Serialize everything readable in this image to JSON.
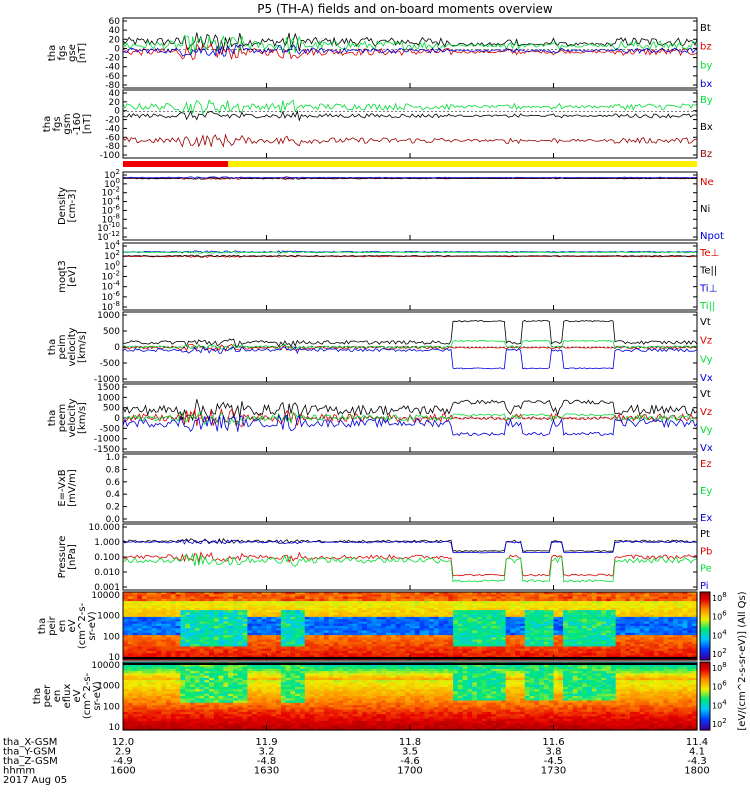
{
  "title": "P5 (TH-A) fields and on-board moments overview",
  "colors": {
    "black": "#000000",
    "red": "#dd0000",
    "green": "#00dd33",
    "blue": "#0000dd",
    "darkred": "#990000",
    "yellow": "#ffee00",
    "bright_green": "#00ff44"
  },
  "status_bar": {
    "segments": [
      {
        "label": "",
        "from_hhmm": "1600",
        "to_hhmm": "1622",
        "color": "red"
      },
      {
        "label": "",
        "from_hhmm": "1622",
        "to_hhmm": "1800",
        "color": "yellow"
      }
    ]
  },
  "chart_data": [
    {
      "id": "fgs_gse",
      "type": "line",
      "ylabel": [
        "tha",
        "fgs",
        "gse",
        "[nT]"
      ],
      "yticks": [
        "60",
        "40",
        "20",
        "0",
        "-20",
        "-40",
        "-60",
        "-80"
      ],
      "ylim": [
        -80,
        65
      ],
      "series": [
        {
          "name": "Bt",
          "color": "black",
          "level": 18,
          "noise": 10
        },
        {
          "name": "bz",
          "color": "red",
          "level": -5,
          "noise": 8
        },
        {
          "name": "by",
          "color": "green",
          "level": 10,
          "noise": 10
        },
        {
          "name": "bx",
          "color": "blue",
          "level": -2,
          "noise": 6
        }
      ]
    },
    {
      "id": "fgs_gsm",
      "type": "line",
      "ylabel": [
        "tha",
        "fgs",
        "gsm",
        "-160",
        "[nT]"
      ],
      "yticks": [
        "40",
        "20",
        "0",
        "-20",
        "-40",
        "-60",
        "-80",
        "-100"
      ],
      "ylim": [
        -105,
        45
      ],
      "series": [
        {
          "name": "By",
          "color": "green",
          "level": 12,
          "noise": 8
        },
        {
          "name": "Bx",
          "color": "black",
          "level": -10,
          "noise": 5
        },
        {
          "name": "Bz",
          "color": "darkred",
          "level": -70,
          "noise": 7
        }
      ]
    },
    {
      "id": "density",
      "type": "line",
      "log": true,
      "ylabel": [
        "Density",
        "[cm-3]"
      ],
      "yticks": [
        "10^2",
        "10^0",
        "10^-2",
        "10^-4",
        "10^-6",
        "10^-8",
        "10^-10",
        "10^-12"
      ],
      "ylim": [
        -12.5,
        2
      ],
      "series": [
        {
          "name": "Ne",
          "color": "red",
          "level": 1.2,
          "noise": 0.1
        },
        {
          "name": "Ni",
          "color": "black",
          "level": 1.2,
          "noise": 0.1
        },
        {
          "name": "Npot",
          "color": "blue",
          "level": 1.4,
          "noise": 0.08
        }
      ]
    },
    {
      "id": "temperature",
      "type": "line",
      "log": true,
      "ylabel": [
        "moqt3",
        "[eV]"
      ],
      "yticks": [
        "10^4",
        "10^2",
        "10^0",
        "10^-2",
        "10^-4",
        "10^-6",
        "10^-8"
      ],
      "ylim": [
        -9,
        4.5
      ],
      "series": [
        {
          "name": "Te⊥",
          "color": "red",
          "level": 2.2,
          "noise": 0.1
        },
        {
          "name": "Te||",
          "color": "black",
          "level": 2.3,
          "noise": 0.1
        },
        {
          "name": "Ti⊥",
          "color": "blue",
          "level": 3.2,
          "noise": 0.1
        },
        {
          "name": "Ti||",
          "color": "green",
          "level": 3.1,
          "noise": 0.1
        }
      ]
    },
    {
      "id": "peim_velocity",
      "type": "line",
      "ylabel": [
        "tha",
        "peim",
        "velocity",
        "[km/s]"
      ],
      "yticks": [
        "1000",
        "500",
        "0",
        "-500",
        "-1000"
      ],
      "ylim": [
        -1050,
        1050
      ],
      "series": [
        {
          "name": "Vt",
          "color": "black",
          "level": 150,
          "noise": 60
        },
        {
          "name": "Vz",
          "color": "red",
          "level": -20,
          "noise": 50
        },
        {
          "name": "Vy",
          "color": "green",
          "level": 0,
          "noise": 40
        },
        {
          "name": "Vx",
          "color": "blue",
          "level": -100,
          "noise": 50
        }
      ]
    },
    {
      "id": "peem_velocity",
      "type": "line",
      "ylabel": [
        "tha",
        "peem",
        "velocity",
        "[km/s]"
      ],
      "yticks": [
        "1500",
        "1000",
        "500",
        "0",
        "-500",
        "-1000",
        "-1500"
      ],
      "ylim": [
        -1550,
        1550
      ],
      "series": [
        {
          "name": "Vt",
          "color": "black",
          "level": 400,
          "noise": 250
        },
        {
          "name": "Vz",
          "color": "red",
          "level": 0,
          "noise": 200
        },
        {
          "name": "Vy",
          "color": "green",
          "level": 0,
          "noise": 150
        },
        {
          "name": "Vx",
          "color": "blue",
          "level": -250,
          "noise": 200
        }
      ]
    },
    {
      "id": "efield",
      "type": "line",
      "ylabel": [
        "E=-VxB",
        "[mV/m]"
      ],
      "yticks": [
        "1.0",
        "0.8",
        "0.6",
        "0.4",
        "0.2",
        "0.0"
      ],
      "ylim": [
        0,
        1.0
      ],
      "series": [
        {
          "name": "Ez",
          "color": "red",
          "level": null
        },
        {
          "name": "Ey",
          "color": "green",
          "level": null
        },
        {
          "name": "Ex",
          "color": "blue",
          "level": null
        }
      ]
    },
    {
      "id": "pressure",
      "type": "line",
      "log": true,
      "ylabel": [
        "Pressure",
        "[nPa]"
      ],
      "yticks": [
        "10.000",
        "1.000",
        "0.100",
        "0.010",
        "0.001"
      ],
      "ylim": [
        -3,
        1
      ],
      "series": [
        {
          "name": "Pt",
          "color": "black",
          "level": 0.05,
          "noise": 0.08
        },
        {
          "name": "Pb",
          "color": "red",
          "level": -1.0,
          "noise": 0.15
        },
        {
          "name": "Pe",
          "color": "green",
          "level": -1.2,
          "noise": 0.2
        },
        {
          "name": "Pi",
          "color": "blue",
          "level": 0.0,
          "noise": 0.06
        }
      ]
    },
    {
      "id": "peir_spectrogram",
      "type": "heatmap",
      "ylabel": [
        "tha",
        "peir",
        "en",
        "eV",
        "(cm^2-s-",
        "sr-eV)"
      ],
      "yticks": [
        "10000",
        "1000",
        "100",
        "10"
      ]
    },
    {
      "id": "peer_spectrogram",
      "type": "heatmap",
      "ylabel": [
        "tha",
        "peer",
        "en",
        "eflux",
        "eV",
        "(cm^2-s-",
        "sr-eV)"
      ],
      "yticks": [
        "10000",
        "1000",
        "100",
        "10"
      ]
    }
  ],
  "colorbar": {
    "label": "[eV/(cm^2-s-sr-eV)] (All Qs)",
    "ticks_upper": [
      "10^8",
      "10^6",
      "10^4",
      "10^2"
    ],
    "ticks_lower": [
      "10^8",
      "10^6",
      "10^4",
      "10^2"
    ]
  },
  "x_axis": {
    "rows": [
      {
        "label": "tha_X-GSM",
        "values": [
          "12.0",
          "11.9",
          "11.8",
          "11.6",
          "11.4"
        ]
      },
      {
        "label": "tha_Y-GSM",
        "values": [
          "2.9",
          "3.2",
          "3.5",
          "3.8",
          "4.1"
        ]
      },
      {
        "label": "tha_Z-GSM",
        "values": [
          "-4.9",
          "-4.8",
          "-4.6",
          "-4.5",
          "-4.3"
        ]
      },
      {
        "label": "hhmm",
        "values": [
          "1600",
          "1630",
          "1700",
          "1730",
          "1800"
        ]
      }
    ],
    "date": "2017 Aug 05"
  }
}
